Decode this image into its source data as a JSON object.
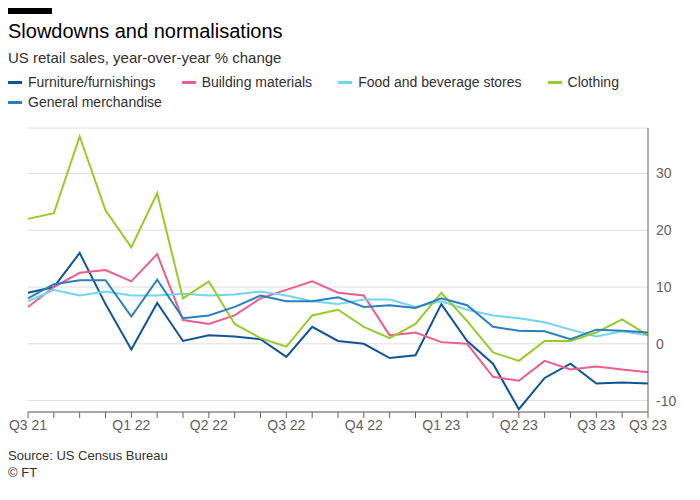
{
  "chart_data": {
    "type": "line",
    "title": "Slowdowns and normalisations",
    "subtitle": "US retail sales, year-over-year % change",
    "source": "Source: US Census Bureau",
    "credit": "© FT",
    "categories": [
      "Q3 21",
      null,
      null,
      null,
      "Q1 22",
      null,
      null,
      "Q2 22",
      null,
      null,
      "Q3 22",
      null,
      null,
      "Q4 22",
      null,
      null,
      "Q1 23",
      null,
      null,
      "Q2 23",
      null,
      null,
      "Q3 23",
      null,
      "Q3 23"
    ],
    "series": [
      {
        "name": "Furniture/furnishings",
        "color": "#0f5499",
        "values": [
          9,
          10,
          16,
          7,
          -1,
          7.2,
          0.5,
          1.5,
          1.3,
          0.8,
          -2.3,
          3,
          0.5,
          0,
          -2.5,
          -2,
          7,
          0.5,
          -3.5,
          -11.5,
          -6,
          -3.5,
          -7,
          -6.8,
          -7
        ]
      },
      {
        "name": "Building materials",
        "color": "#eb5e8d",
        "values": [
          6.5,
          10,
          12.5,
          13,
          11,
          15.8,
          4.2,
          3.5,
          5,
          8,
          9.5,
          11,
          9,
          8.5,
          1.5,
          2,
          0.3,
          0,
          -5.8,
          -6.5,
          -3,
          -4.5,
          -4,
          -4.5,
          -5
        ]
      },
      {
        "name": "Food and beverage stores",
        "color": "#72d5ef",
        "values": [
          7.5,
          9.5,
          8.5,
          9.2,
          8.5,
          8.5,
          8.8,
          8.5,
          8.7,
          9.2,
          8.5,
          7.5,
          7,
          7.8,
          7.8,
          6.5,
          7.5,
          6,
          5,
          4.5,
          3.8,
          2.5,
          1.3,
          2.2,
          1.5
        ]
      },
      {
        "name": "Clothing",
        "color": "#96cc28",
        "values": [
          22,
          23,
          36.5,
          23.5,
          17,
          26.5,
          8,
          11,
          3.5,
          1,
          -0.5,
          5,
          6,
          3,
          1,
          3.5,
          9,
          4,
          -1.5,
          -3,
          0.5,
          0.5,
          2,
          4.3,
          1.5
        ]
      },
      {
        "name": "General merchandise",
        "color": "#2a7fbf",
        "values": [
          8,
          10.5,
          11.2,
          11.2,
          4.8,
          11.3,
          4.5,
          5,
          6.5,
          8.5,
          7.5,
          7.5,
          8.2,
          6.5,
          6.8,
          6.3,
          8,
          6.8,
          3,
          2.3,
          2.2,
          0.8,
          2.5,
          2.3,
          2
        ]
      }
    ],
    "ylim": [
      -12,
      38
    ],
    "yticks": [
      -10,
      0,
      10,
      20,
      30
    ],
    "grid": true,
    "legend": "top"
  }
}
